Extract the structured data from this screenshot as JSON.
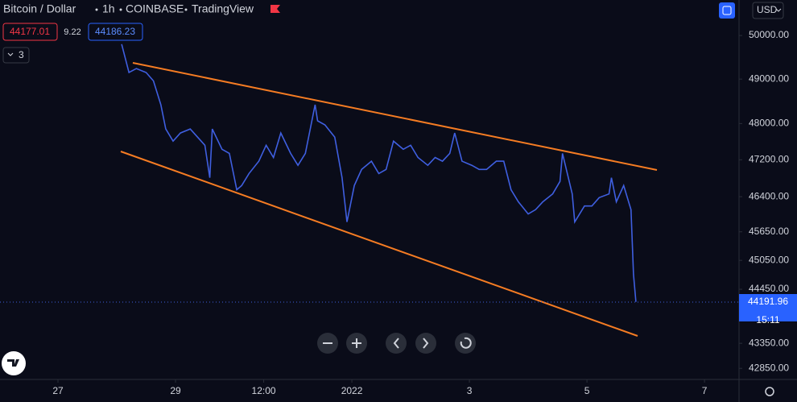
{
  "header": {
    "symbol": "Bitcoin / Dollar",
    "interval": "1h",
    "exchange": "COINBASE",
    "source": "TradingView",
    "sell": "44177.01",
    "spread": "9.22",
    "buy": "44186.23",
    "indicators": "3",
    "currency": "USD",
    "countdown": "15:11"
  },
  "chart_data": {
    "type": "line",
    "log_scale": true,
    "color": "#3f5fe0",
    "x": [
      26,
      29,
      32,
      36,
      39,
      42,
      44,
      47,
      50,
      54,
      57,
      60,
      62,
      63,
      67,
      70,
      73,
      75,
      78,
      82,
      85,
      88,
      91,
      95,
      98,
      101,
      105,
      106,
      109,
      113,
      116,
      118,
      121,
      124,
      128,
      131,
      134,
      137,
      141,
      144,
      147,
      151,
      154,
      157,
      160,
      162,
      165,
      169,
      172,
      175,
      179,
      182,
      185,
      188,
      192,
      195,
      198,
      202,
      205,
      206,
      210,
      211,
      215,
      218,
      221,
      225,
      226,
      228,
      231,
      234,
      235,
      236
    ],
    "series": [
      {
        "name": "BTCUSD",
        "color": "#3f5fe0",
        "values": [
          49800,
          49150,
          49240,
          49150,
          48960,
          48420,
          47880,
          47610,
          47790,
          47880,
          47700,
          47520,
          46810,
          47880,
          47430,
          47340,
          46550,
          46640,
          46900,
          47170,
          47520,
          47250,
          47790,
          47340,
          47080,
          47340,
          48420,
          48060,
          47970,
          47700,
          46810,
          45860,
          46640,
          46990,
          47170,
          46900,
          46990,
          47610,
          47430,
          47520,
          47250,
          47080,
          47250,
          47170,
          47340,
          47790,
          47170,
          47080,
          46990,
          46990,
          47170,
          47170,
          46550,
          46290,
          46030,
          46120,
          46290,
          46460,
          46730,
          47340,
          46460,
          45860,
          46200,
          46200,
          46380,
          46460,
          46810,
          46290,
          46640,
          46120,
          44760,
          44191.96
        ]
      }
    ],
    "xlim": [
      -23.67,
      278.1
    ],
    "xticks": [
      {
        "value": 0,
        "label": "27"
      },
      {
        "value": 48,
        "label": "29"
      },
      {
        "value": 84,
        "label": "12:00"
      },
      {
        "value": 120,
        "label": "2022"
      },
      {
        "value": 168,
        "label": "3"
      },
      {
        "value": 216,
        "label": "5"
      },
      {
        "value": 264,
        "label": "7"
      }
    ],
    "ylim": [
      42630,
      50830
    ],
    "yticks": [
      {
        "value": 50000,
        "label": "50000.00"
      },
      {
        "value": 49000,
        "label": "49000.00"
      },
      {
        "value": 48000,
        "label": "48000.00"
      },
      {
        "value": 47200,
        "label": "47200.00"
      },
      {
        "value": 46400,
        "label": "46400.00"
      },
      {
        "value": 45650,
        "label": "45650.00"
      },
      {
        "value": 45050,
        "label": "45050.00"
      },
      {
        "value": 44450,
        "label": "44450.00"
      },
      {
        "value": 43350,
        "label": "43350.00"
      },
      {
        "value": 42850,
        "label": "42850.00"
      }
    ]
  }
}
